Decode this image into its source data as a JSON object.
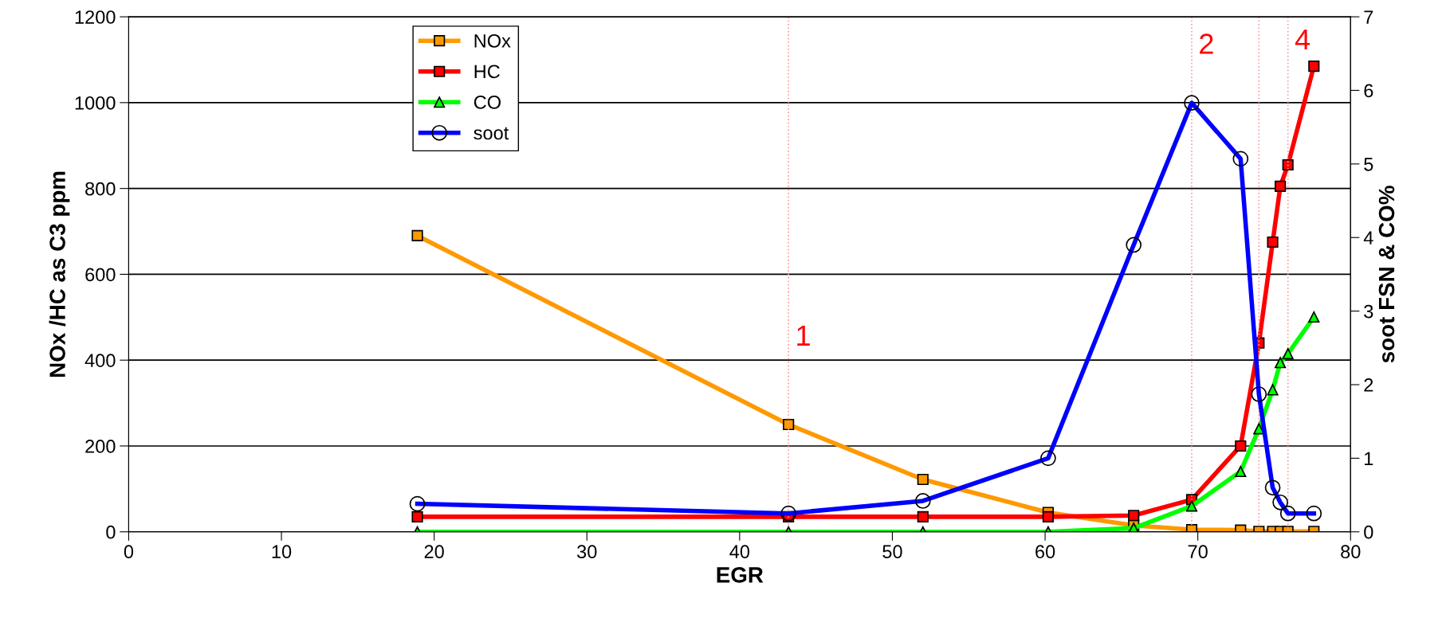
{
  "chart_data": {
    "type": "line",
    "xlabel": "EGR",
    "ylabel": "NOx /HC as C3 ppm",
    "y2label": "soot FSN & CO%",
    "x": [
      18.9,
      43.2,
      52.0,
      60.2,
      65.8,
      69.6,
      72.8,
      74.0,
      74.9,
      75.4,
      75.9,
      77.6
    ],
    "series": [
      {
        "name": "NOx",
        "color": "#ff9900",
        "marker": "square",
        "values": [
          690,
          250,
          122,
          45,
          15,
          5,
          4,
          1,
          1,
          1,
          1,
          1
        ]
      },
      {
        "name": "HC",
        "color": "#ff0000",
        "marker": "square",
        "values": [
          35,
          35,
          35,
          35,
          38,
          75,
          200,
          440,
          675,
          805,
          855,
          1085
        ]
      },
      {
        "name": "CO",
        "color": "#00ff00",
        "marker": "triangle",
        "axis": "y2",
        "values": [
          0,
          0,
          0,
          0,
          0.05,
          0.35,
          0.82,
          1.4,
          1.93,
          2.3,
          2.42,
          2.92
        ]
      },
      {
        "name": "soot",
        "color": "#0000ff",
        "marker": "circle",
        "axis": "y2",
        "values": [
          0.38,
          0.25,
          0.42,
          1.0,
          3.9,
          5.83,
          5.07,
          1.87,
          0.6,
          0.4,
          0.25,
          0.25
        ]
      }
    ],
    "xlim": [
      0,
      80
    ],
    "xticks": [
      0,
      10,
      20,
      30,
      40,
      50,
      60,
      70,
      80
    ],
    "ylim": [
      0,
      1200
    ],
    "yticks": [
      0,
      200,
      400,
      600,
      800,
      1000,
      1200
    ],
    "y2lim": [
      0,
      7
    ],
    "y2ticks": [
      0,
      1,
      2,
      3,
      4,
      5,
      6,
      7
    ],
    "ref_lines": [
      {
        "axis": "x",
        "value": 43.2,
        "color": "#ff9999",
        "line_style": "dotted"
      },
      {
        "axis": "x",
        "value": 69.6,
        "color": "#ff9999",
        "line_style": "dotted"
      },
      {
        "axis": "x",
        "value": 74.0,
        "color": "#ff9999",
        "line_style": "dotted"
      },
      {
        "axis": "x",
        "value": 75.9,
        "color": "#ff9999",
        "line_style": "dotted"
      }
    ],
    "annotations": [
      {
        "text": "1",
        "x": 43.2,
        "y": 420
      },
      {
        "text": "2",
        "x": 69.6,
        "y": 1100
      },
      {
        "text": "4",
        "x": 75.9,
        "y": 1110
      }
    ],
    "grid": "y",
    "legend": "top left",
    "line_style": "solid"
  }
}
